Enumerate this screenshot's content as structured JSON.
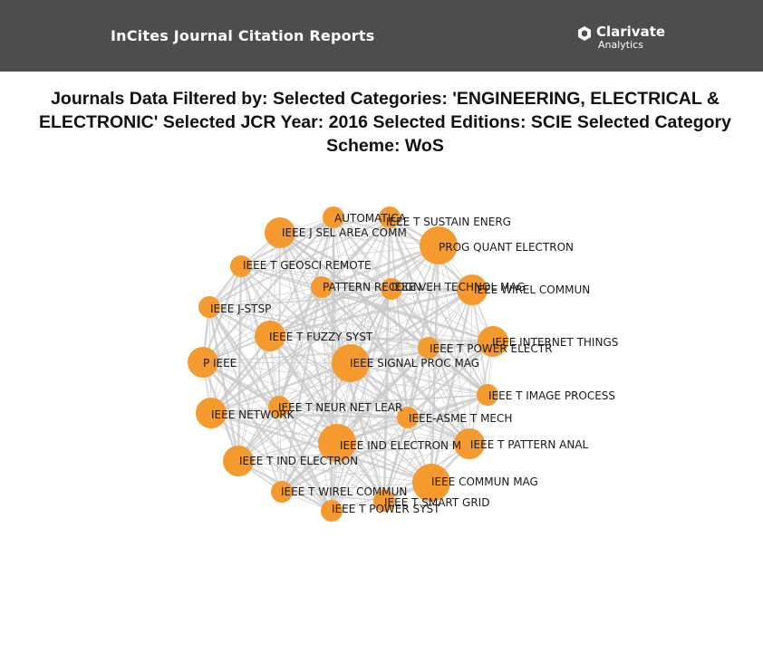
{
  "header": {
    "title": "InCites Journal Citation Reports",
    "brand_name": "Clarivate",
    "brand_sub": "Analytics",
    "bg_color": "#4d4d4d"
  },
  "page_title": "Journals Data Filtered by: Selected Categories: 'ENGINEERING, ELECTRICAL & ELECTRONIC' Selected JCR Year: 2016 Selected Editions: SCIE  Selected Category Scheme: WoS",
  "network": {
    "node_color": "#f59a2e",
    "edge_color": "#c8c8c8",
    "nodes": [
      {
        "label": "AUTOMATICA",
        "size": "small",
        "icon": "journal-node"
      },
      {
        "label": "IEEE T SUSTAIN ENERG",
        "size": "small",
        "icon": "journal-node"
      },
      {
        "label": "IEEE J SEL AREA COMM",
        "size": "medium",
        "icon": "journal-node"
      },
      {
        "label": "PROG QUANT ELECTRON",
        "size": "large",
        "icon": "journal-node"
      },
      {
        "label": "IEEE T GEOSCI REMOTE",
        "size": "small",
        "icon": "journal-node"
      },
      {
        "label": "PATTERN RECOGN",
        "size": "small",
        "icon": "journal-node"
      },
      {
        "label": "IEEE VEH TECHNOL MAG",
        "size": "small",
        "icon": "journal-node"
      },
      {
        "label": "IEEE WIREL COMMUN",
        "size": "medium",
        "icon": "journal-node"
      },
      {
        "label": "IEEE J-STSP",
        "size": "small",
        "icon": "journal-node"
      },
      {
        "label": "IEEE T FUZZY SYST",
        "size": "medium",
        "icon": "journal-node"
      },
      {
        "label": "IEEE T POWER ELECTR",
        "size": "small",
        "icon": "journal-node"
      },
      {
        "label": "IEEE INTERNET THINGS",
        "size": "medium",
        "icon": "journal-node"
      },
      {
        "label": "P IEEE",
        "size": "medium",
        "icon": "journal-node"
      },
      {
        "label": "IEEE SIGNAL PROC MAG",
        "size": "large",
        "icon": "journal-node"
      },
      {
        "label": "IEEE T IMAGE PROCESS",
        "size": "small",
        "icon": "journal-node"
      },
      {
        "label": "IEEE NETWORK",
        "size": "medium",
        "icon": "journal-node"
      },
      {
        "label": "IEEE T NEUR NET LEAR",
        "size": "small",
        "icon": "journal-node"
      },
      {
        "label": "IEEE-ASME T MECH",
        "size": "small",
        "icon": "journal-node"
      },
      {
        "label": "IEEE IND ELECTRON M",
        "size": "large",
        "icon": "journal-node"
      },
      {
        "label": "IEEE T PATTERN ANAL",
        "size": "medium",
        "icon": "journal-node"
      },
      {
        "label": "IEEE T IND ELECTRON",
        "size": "medium",
        "icon": "journal-node"
      },
      {
        "label": "IEEE COMMUN MAG",
        "size": "large",
        "icon": "journal-node"
      },
      {
        "label": "IEEE T WIREL COMMUN",
        "size": "small",
        "icon": "journal-node"
      },
      {
        "label": "IEEE T SMART GRID",
        "size": "small",
        "icon": "journal-node"
      },
      {
        "label": "IEEE T POWER SYST",
        "size": "small",
        "icon": "journal-node"
      }
    ]
  }
}
